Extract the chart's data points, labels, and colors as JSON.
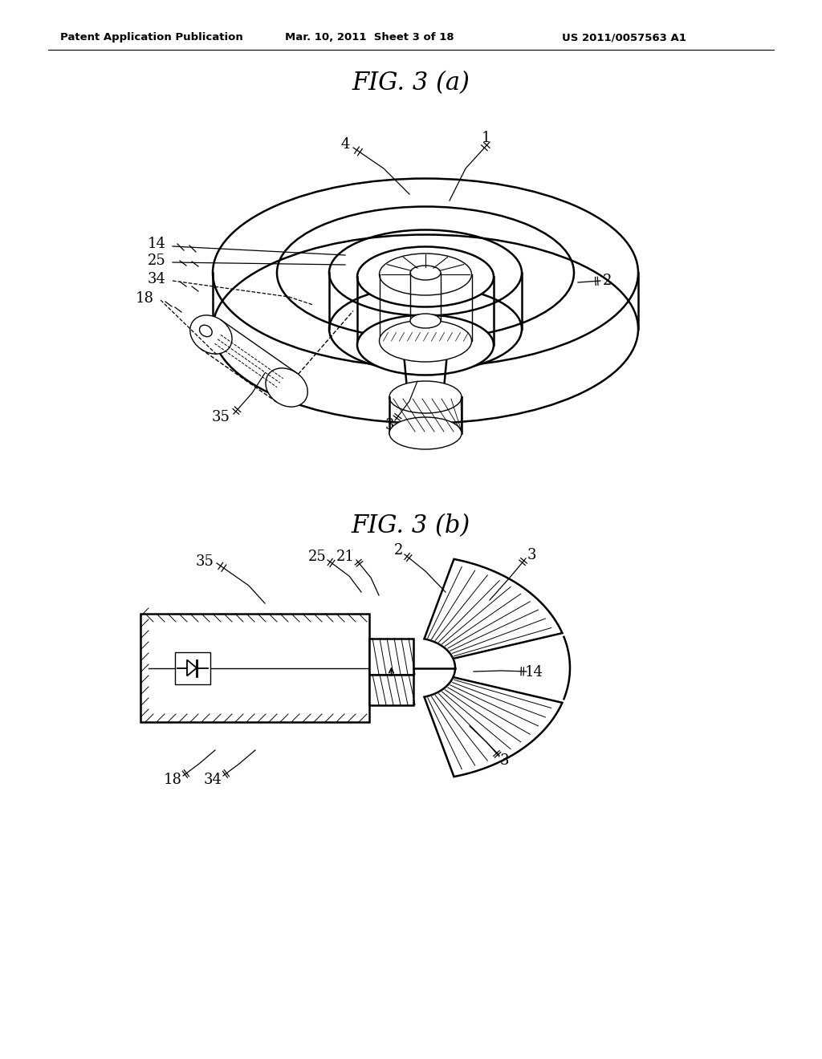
{
  "bg_color": "#ffffff",
  "line_color": "#000000",
  "header_left": "Patent Application Publication",
  "header_center": "Mar. 10, 2011  Sheet 3 of 18",
  "header_right": "US 2011/0057563 A1",
  "fig_a_title": "FIG. 3 (a)",
  "fig_b_title": "FIG. 3 (b)"
}
